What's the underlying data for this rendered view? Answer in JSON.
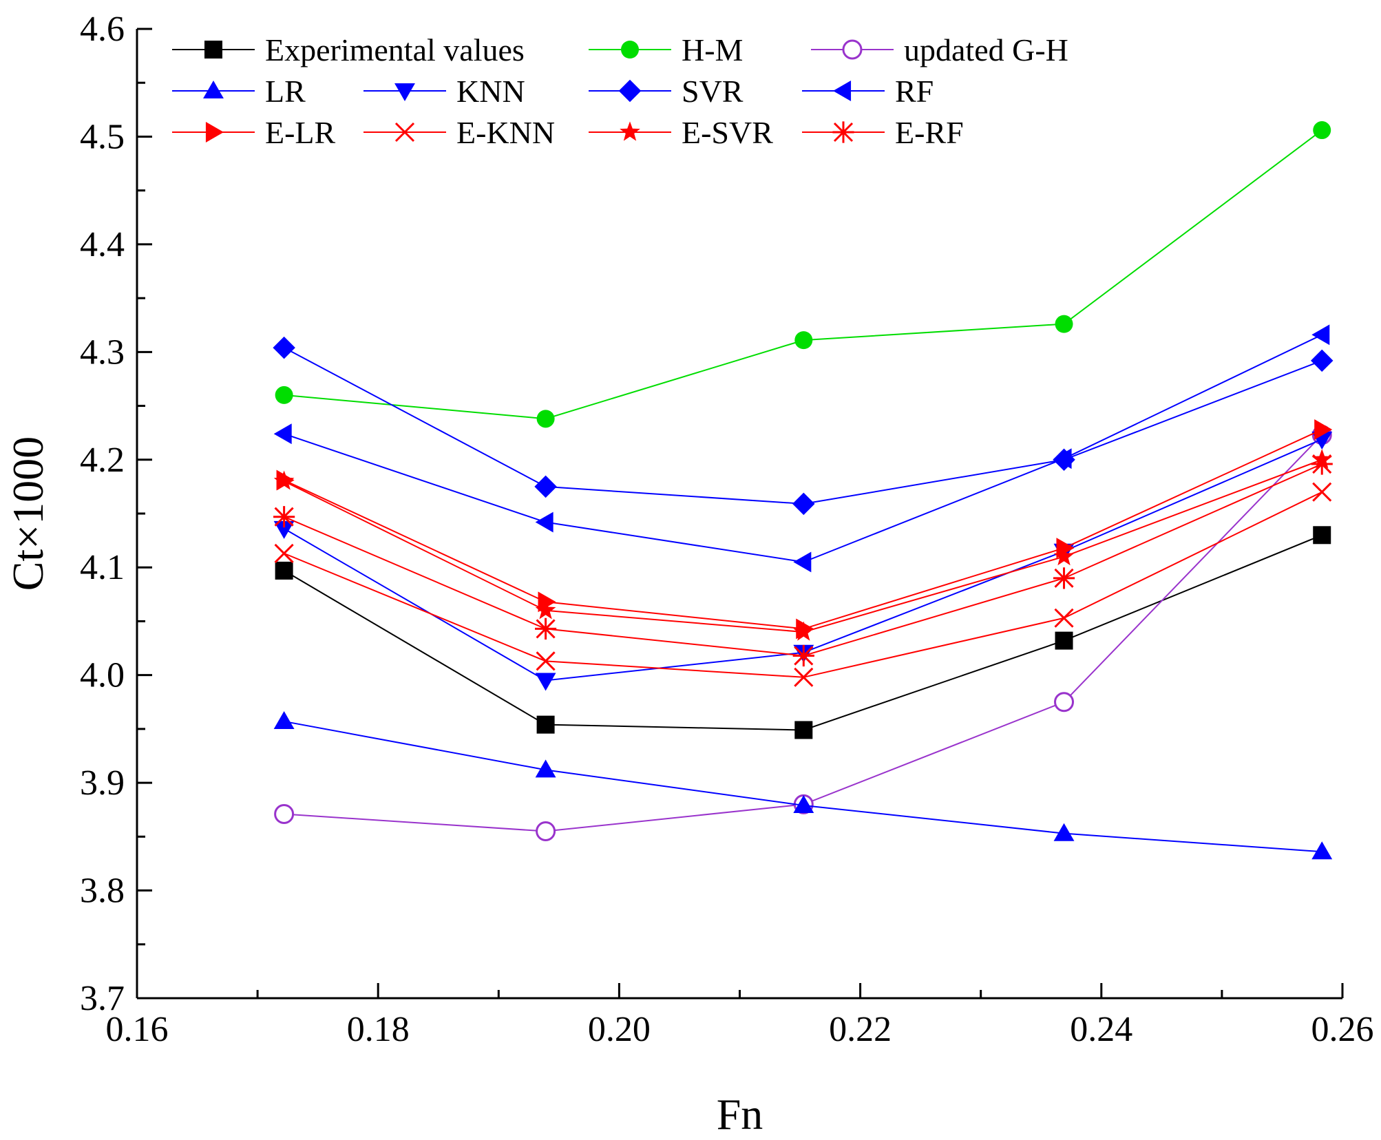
{
  "chart_data": {
    "type": "line",
    "xlabel": "Fn",
    "ylabel": "Ct×1000",
    "xlim": [
      0.16,
      0.26
    ],
    "ylim": [
      3.7,
      4.6
    ],
    "xticks": [
      "0.16",
      "0.18",
      "0.20",
      "0.22",
      "0.24",
      "0.26"
    ],
    "yticks": [
      "3.7",
      "3.8",
      "3.9",
      "4.0",
      "4.1",
      "4.2",
      "4.3",
      "4.4",
      "4.5",
      "4.6"
    ],
    "x": [
      0.1722,
      0.1939,
      0.2153,
      0.2369,
      0.2583
    ],
    "legend_position": "top-left",
    "series": [
      {
        "name": "Experimental values",
        "color": "#000000",
        "marker": "square",
        "values": [
          4.097,
          3.954,
          3.949,
          4.032,
          4.13
        ]
      },
      {
        "name": "H-M",
        "color": "#00dd00",
        "marker": "circle",
        "values": [
          4.26,
          4.238,
          4.311,
          4.326,
          4.506
        ]
      },
      {
        "name": "updated G-H",
        "color": "#9933cc",
        "marker": "open-circle",
        "values": [
          3.871,
          3.855,
          3.88,
          3.975,
          4.223
        ]
      },
      {
        "name": "LR",
        "color": "#0000ff",
        "marker": "triangle-up",
        "values": [
          3.957,
          3.912,
          3.879,
          3.853,
          3.836
        ]
      },
      {
        "name": "KNN",
        "color": "#0000ff",
        "marker": "triangle-down",
        "values": [
          4.136,
          3.995,
          4.021,
          4.115,
          4.219
        ]
      },
      {
        "name": "SVR",
        "color": "#0000ff",
        "marker": "diamond",
        "values": [
          4.304,
          4.175,
          4.159,
          4.2,
          4.292
        ]
      },
      {
        "name": "RF",
        "color": "#0000ff",
        "marker": "triangle-left",
        "values": [
          4.224,
          4.142,
          4.105,
          4.201,
          4.316
        ]
      },
      {
        "name": "E-LR",
        "color": "#ff0000",
        "marker": "triangle-right",
        "values": [
          4.181,
          4.068,
          4.043,
          4.118,
          4.228
        ]
      },
      {
        "name": "E-KNN",
        "color": "#ff0000",
        "marker": "x",
        "values": [
          4.113,
          4.013,
          3.998,
          4.053,
          4.17
        ]
      },
      {
        "name": "E-SVR",
        "color": "#ff0000",
        "marker": "star",
        "values": [
          4.18,
          4.06,
          4.04,
          4.11,
          4.2
        ]
      },
      {
        "name": "E-RF",
        "color": "#ff0000",
        "marker": "asterisk",
        "values": [
          4.147,
          4.043,
          4.018,
          4.09,
          4.196
        ]
      }
    ]
  }
}
